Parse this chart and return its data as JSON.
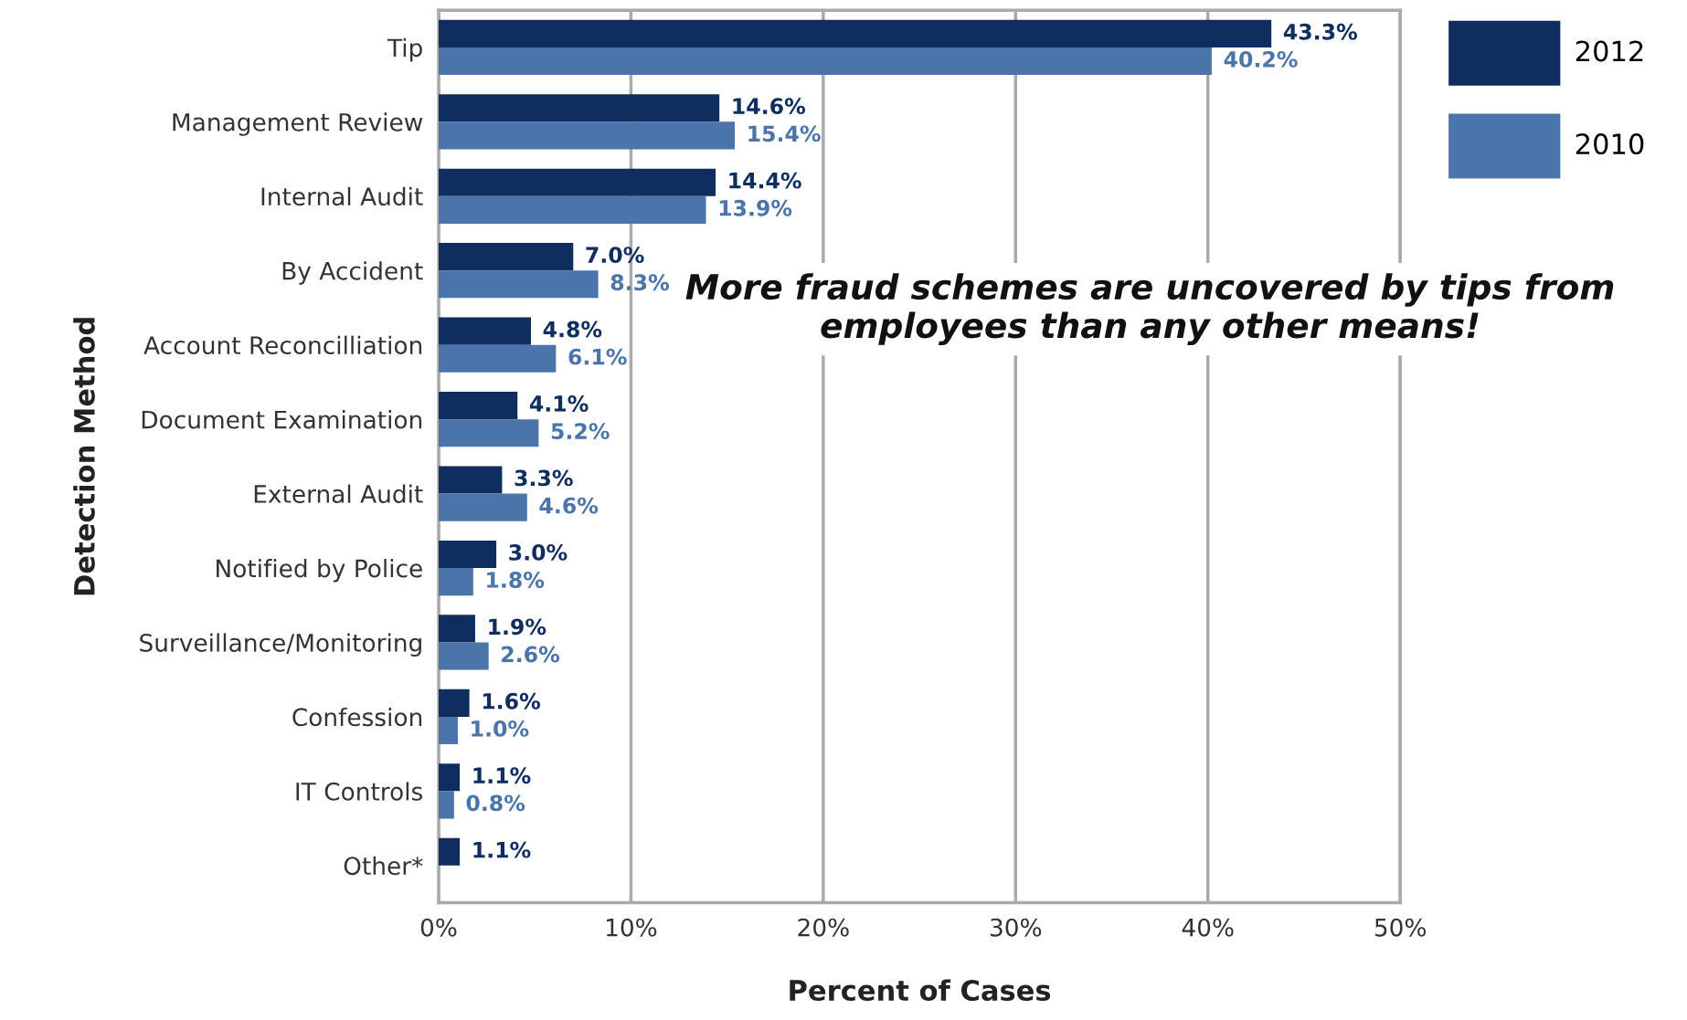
{
  "chart_data": {
    "type": "bar",
    "orientation": "horizontal",
    "xlabel": "Percent of Cases",
    "ylabel": "Detection Method",
    "categories": [
      "Tip",
      "Management Review",
      "Internal Audit",
      "By Accident",
      "Account Reconcilliation",
      "Document Examination",
      "External Audit",
      "Notified by Police",
      "Surveillance/Monitoring",
      "Confession",
      "IT Controls",
      "Other*"
    ],
    "series": [
      {
        "name": "2012",
        "color": "#0f2d5e",
        "values": [
          43.3,
          14.6,
          14.4,
          7.0,
          4.8,
          4.1,
          3.3,
          3.0,
          1.9,
          1.6,
          1.1,
          1.1
        ],
        "value_labels": [
          "43.3%",
          "14.6%",
          "14.4%",
          "7.0%",
          "4.8%",
          "4.1%",
          "3.3%",
          "3.0%",
          "1.9%",
          "1.6%",
          "1.1%",
          "1.1%"
        ]
      },
      {
        "name": "2010",
        "color": "#4a74aa",
        "values": [
          40.2,
          15.4,
          13.9,
          8.3,
          6.1,
          5.2,
          4.6,
          1.8,
          2.6,
          1.0,
          0.8,
          null
        ],
        "value_labels": [
          "40.2%",
          "15.4%",
          "13.9%",
          "8.3%",
          "6.1%",
          "5.2%",
          "4.6%",
          "1.8%",
          "2.6%",
          "1.0%",
          "0.8%",
          null
        ]
      }
    ],
    "xlim": [
      0,
      50
    ],
    "xticks": [
      {
        "value": 0,
        "label": "0%"
      },
      {
        "value": 10,
        "label": "10%"
      },
      {
        "value": 20,
        "label": "20%"
      },
      {
        "value": 30,
        "label": "30%"
      },
      {
        "value": 40,
        "label": "40%"
      },
      {
        "value": 50,
        "label": "50%"
      }
    ],
    "grid": "x",
    "legend": "top right",
    "annotations": [
      "More fraud schemes are uncovered by tips from employees than any other means!"
    ]
  }
}
